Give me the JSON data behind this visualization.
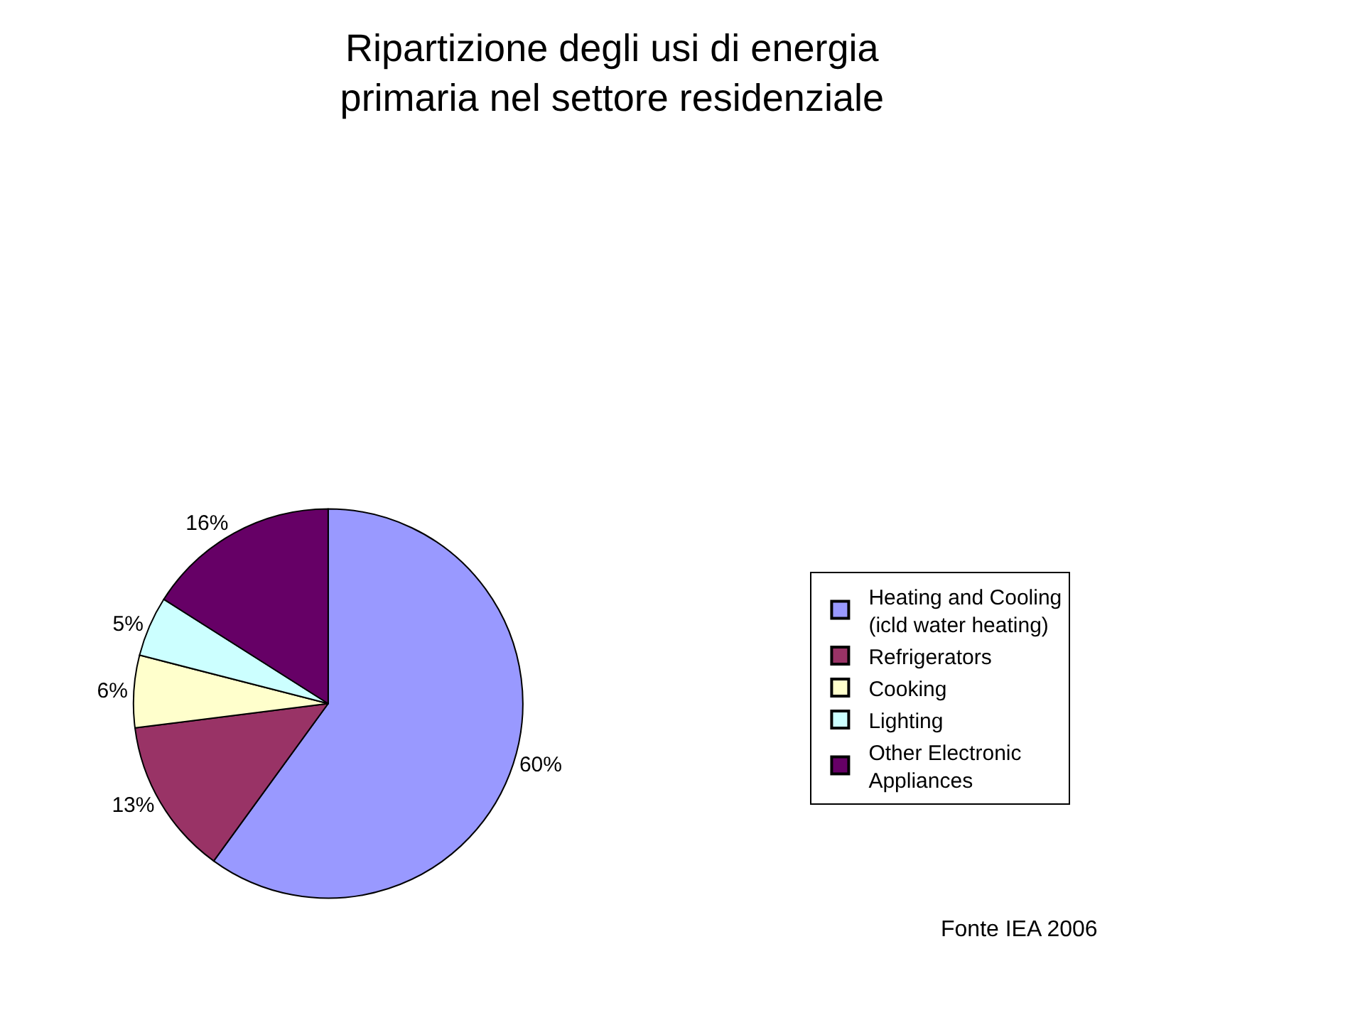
{
  "chart_data": {
    "type": "pie",
    "title": "Ripartizione degli usi di energia primaria nel settore residenziale",
    "categories": [
      "Heating and Cooling (icld water heating)",
      "Refrigerators",
      "Cooking",
      "Lighting",
      "Other Electronic Appliances"
    ],
    "values": [
      60,
      13,
      6,
      5,
      16
    ],
    "value_labels": [
      "60%",
      "13%",
      "6%",
      "5%",
      "16%"
    ],
    "colors": [
      "#9999ff",
      "#993366",
      "#ffffcc",
      "#ccffff",
      "#660066"
    ],
    "legend": "right",
    "annotations": [
      "Fonte IEA 2006"
    ]
  }
}
